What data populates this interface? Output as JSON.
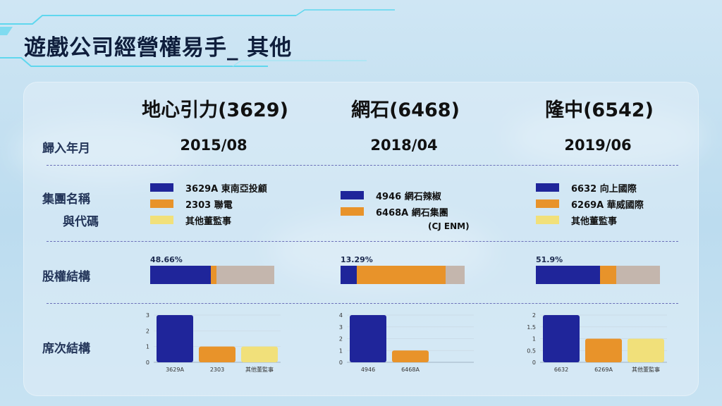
{
  "page_title": "遊戲公司經營權易手_ 其他",
  "row_labels": {
    "date": "歸入年月",
    "group_line1": "集團名稱",
    "group_line2": "與代碼",
    "equity": "股權結構",
    "seats": "席次結構"
  },
  "colors": {
    "blue": "#1f259a",
    "orange": "#e8932a",
    "yellow": "#f1e07a",
    "gray": "#c4b6ad"
  },
  "companies": [
    {
      "header": "地心引力(3629)",
      "date": "2015/08",
      "legend": [
        {
          "label": "3629A  東南亞投顧",
          "color": "#1f259a"
        },
        {
          "label": "2303  聯電",
          "color": "#e8932a"
        },
        {
          "label": "其他董監事",
          "color": "#f1e07a"
        }
      ],
      "equity_label": "48.66%",
      "equity": [
        48.66,
        5,
        46.34
      ],
      "seats": {
        "categories": [
          "3629A",
          "2303",
          "其他董監事"
        ],
        "values": [
          3,
          1,
          1
        ],
        "ymax": 3,
        "ticks": [
          "0",
          "1",
          "2",
          "3"
        ]
      }
    },
    {
      "header": "網石(6468)",
      "date": "2018/04",
      "legend": [
        {
          "label": "4946  網石辣椒",
          "color": "#1f259a"
        },
        {
          "label": "6468A  網石集團",
          "color": "#e8932a"
        }
      ],
      "legend_sub": "(CJ ENM)",
      "equity_label": "13.29%",
      "equity": [
        13.29,
        71.3,
        15.41
      ],
      "seats": {
        "categories": [
          "4946",
          "6468A"
        ],
        "values": [
          4,
          1
        ],
        "ymax": 4,
        "ticks": [
          "0",
          "1",
          "2",
          "3",
          "4"
        ]
      }
    },
    {
      "header": "隆中(6542)",
      "date": "2019/06",
      "legend": [
        {
          "label": "6632  向上國際",
          "color": "#1f259a"
        },
        {
          "label": "6269A  華威國際",
          "color": "#e8932a"
        },
        {
          "label": "其他董監事",
          "color": "#f1e07a"
        }
      ],
      "equity_label": "51.9%",
      "equity": [
        51.9,
        13,
        35.1
      ],
      "seats": {
        "categories": [
          "6632",
          "6269A",
          "其他董監事"
        ],
        "values": [
          2,
          1,
          1
        ],
        "ymax": 2,
        "ticks": [
          "0",
          "0.5",
          "1",
          "1.5",
          "2"
        ]
      }
    }
  ],
  "chart_data": [
    {
      "type": "bar",
      "title": "地心引力(3629) 席次結構",
      "categories": [
        "3629A",
        "2303",
        "其他董監事"
      ],
      "values": [
        3,
        1,
        1
      ],
      "ylim": [
        0,
        3
      ]
    },
    {
      "type": "bar",
      "title": "網石(6468) 席次結構",
      "categories": [
        "4946",
        "6468A"
      ],
      "values": [
        4,
        1
      ],
      "ylim": [
        0,
        4
      ]
    },
    {
      "type": "bar",
      "title": "隆中(6542) 席次結構",
      "categories": [
        "6632",
        "6269A",
        "其他董監事"
      ],
      "values": [
        2,
        1,
        1
      ],
      "ylim": [
        0,
        2
      ]
    }
  ]
}
